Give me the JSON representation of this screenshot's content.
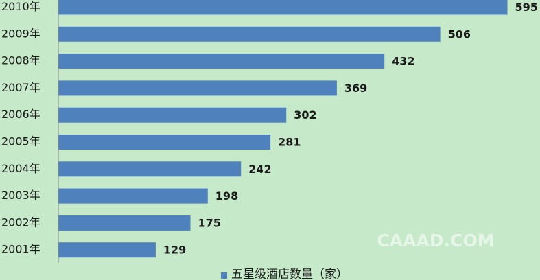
{
  "chart_data": {
    "type": "bar",
    "orientation": "horizontal",
    "categories": [
      "2010年",
      "2009年",
      "2008年",
      "2007年",
      "2006年",
      "2005年",
      "2004年",
      "2003年",
      "2002年",
      "2001年"
    ],
    "series": [
      {
        "name": "五星级酒店数量（家）",
        "color": "#4f81bd",
        "values": [
          595,
          506,
          432,
          369,
          302,
          281,
          242,
          198,
          175,
          129
        ]
      }
    ],
    "xlim": [
      0,
      600
    ],
    "watermark": "CAAAD.COM"
  }
}
